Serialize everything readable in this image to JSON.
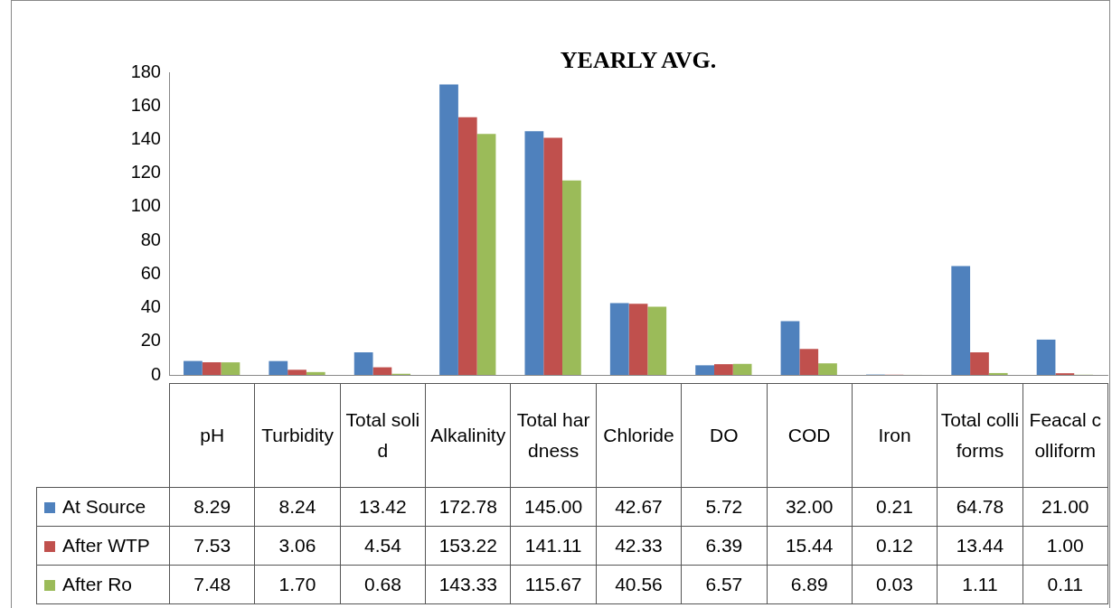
{
  "chart_data": {
    "type": "bar",
    "title": "YEARLY AVG.",
    "categories": [
      "pH",
      "Turbidity",
      "Total solid",
      "Alkalinity",
      "Total hardness",
      "Chloride",
      "DO",
      "COD",
      "Iron",
      "Total colliforms",
      "Feacal colliform"
    ],
    "series": [
      {
        "name": "At Source",
        "color": "#4f81bd",
        "values": [
          8.29,
          8.24,
          13.42,
          172.78,
          145.0,
          42.67,
          5.72,
          32.0,
          0.21,
          64.78,
          21.0
        ],
        "value_labels": [
          "8.29",
          "8.24",
          "13.42",
          "172.78",
          "145.00",
          "42.67",
          "5.72",
          "32.00",
          "0.21",
          "64.78",
          "21.00"
        ]
      },
      {
        "name": "After WTP",
        "color": "#c0504d",
        "values": [
          7.53,
          3.06,
          4.54,
          153.22,
          141.11,
          42.33,
          6.39,
          15.44,
          0.12,
          13.44,
          1.0
        ],
        "value_labels": [
          "7.53",
          "3.06",
          "4.54",
          "153.22",
          "141.11",
          "42.33",
          "6.39",
          "15.44",
          "0.12",
          "13.44",
          "1.00"
        ]
      },
      {
        "name": "After Ro",
        "color": "#9bbb59",
        "values": [
          7.48,
          1.7,
          0.68,
          143.33,
          115.67,
          40.56,
          6.57,
          6.89,
          0.03,
          1.11,
          0.11
        ],
        "value_labels": [
          "7.48",
          "1.70",
          "0.68",
          "143.33",
          "115.67",
          "40.56",
          "6.57",
          "6.89",
          "0.03",
          "1.11",
          "0.11"
        ]
      }
    ],
    "ylim": [
      0,
      180
    ],
    "yticks": [
      0,
      20,
      40,
      60,
      80,
      100,
      120,
      140,
      160,
      180
    ],
    "grid": false,
    "legend": "bottom"
  }
}
